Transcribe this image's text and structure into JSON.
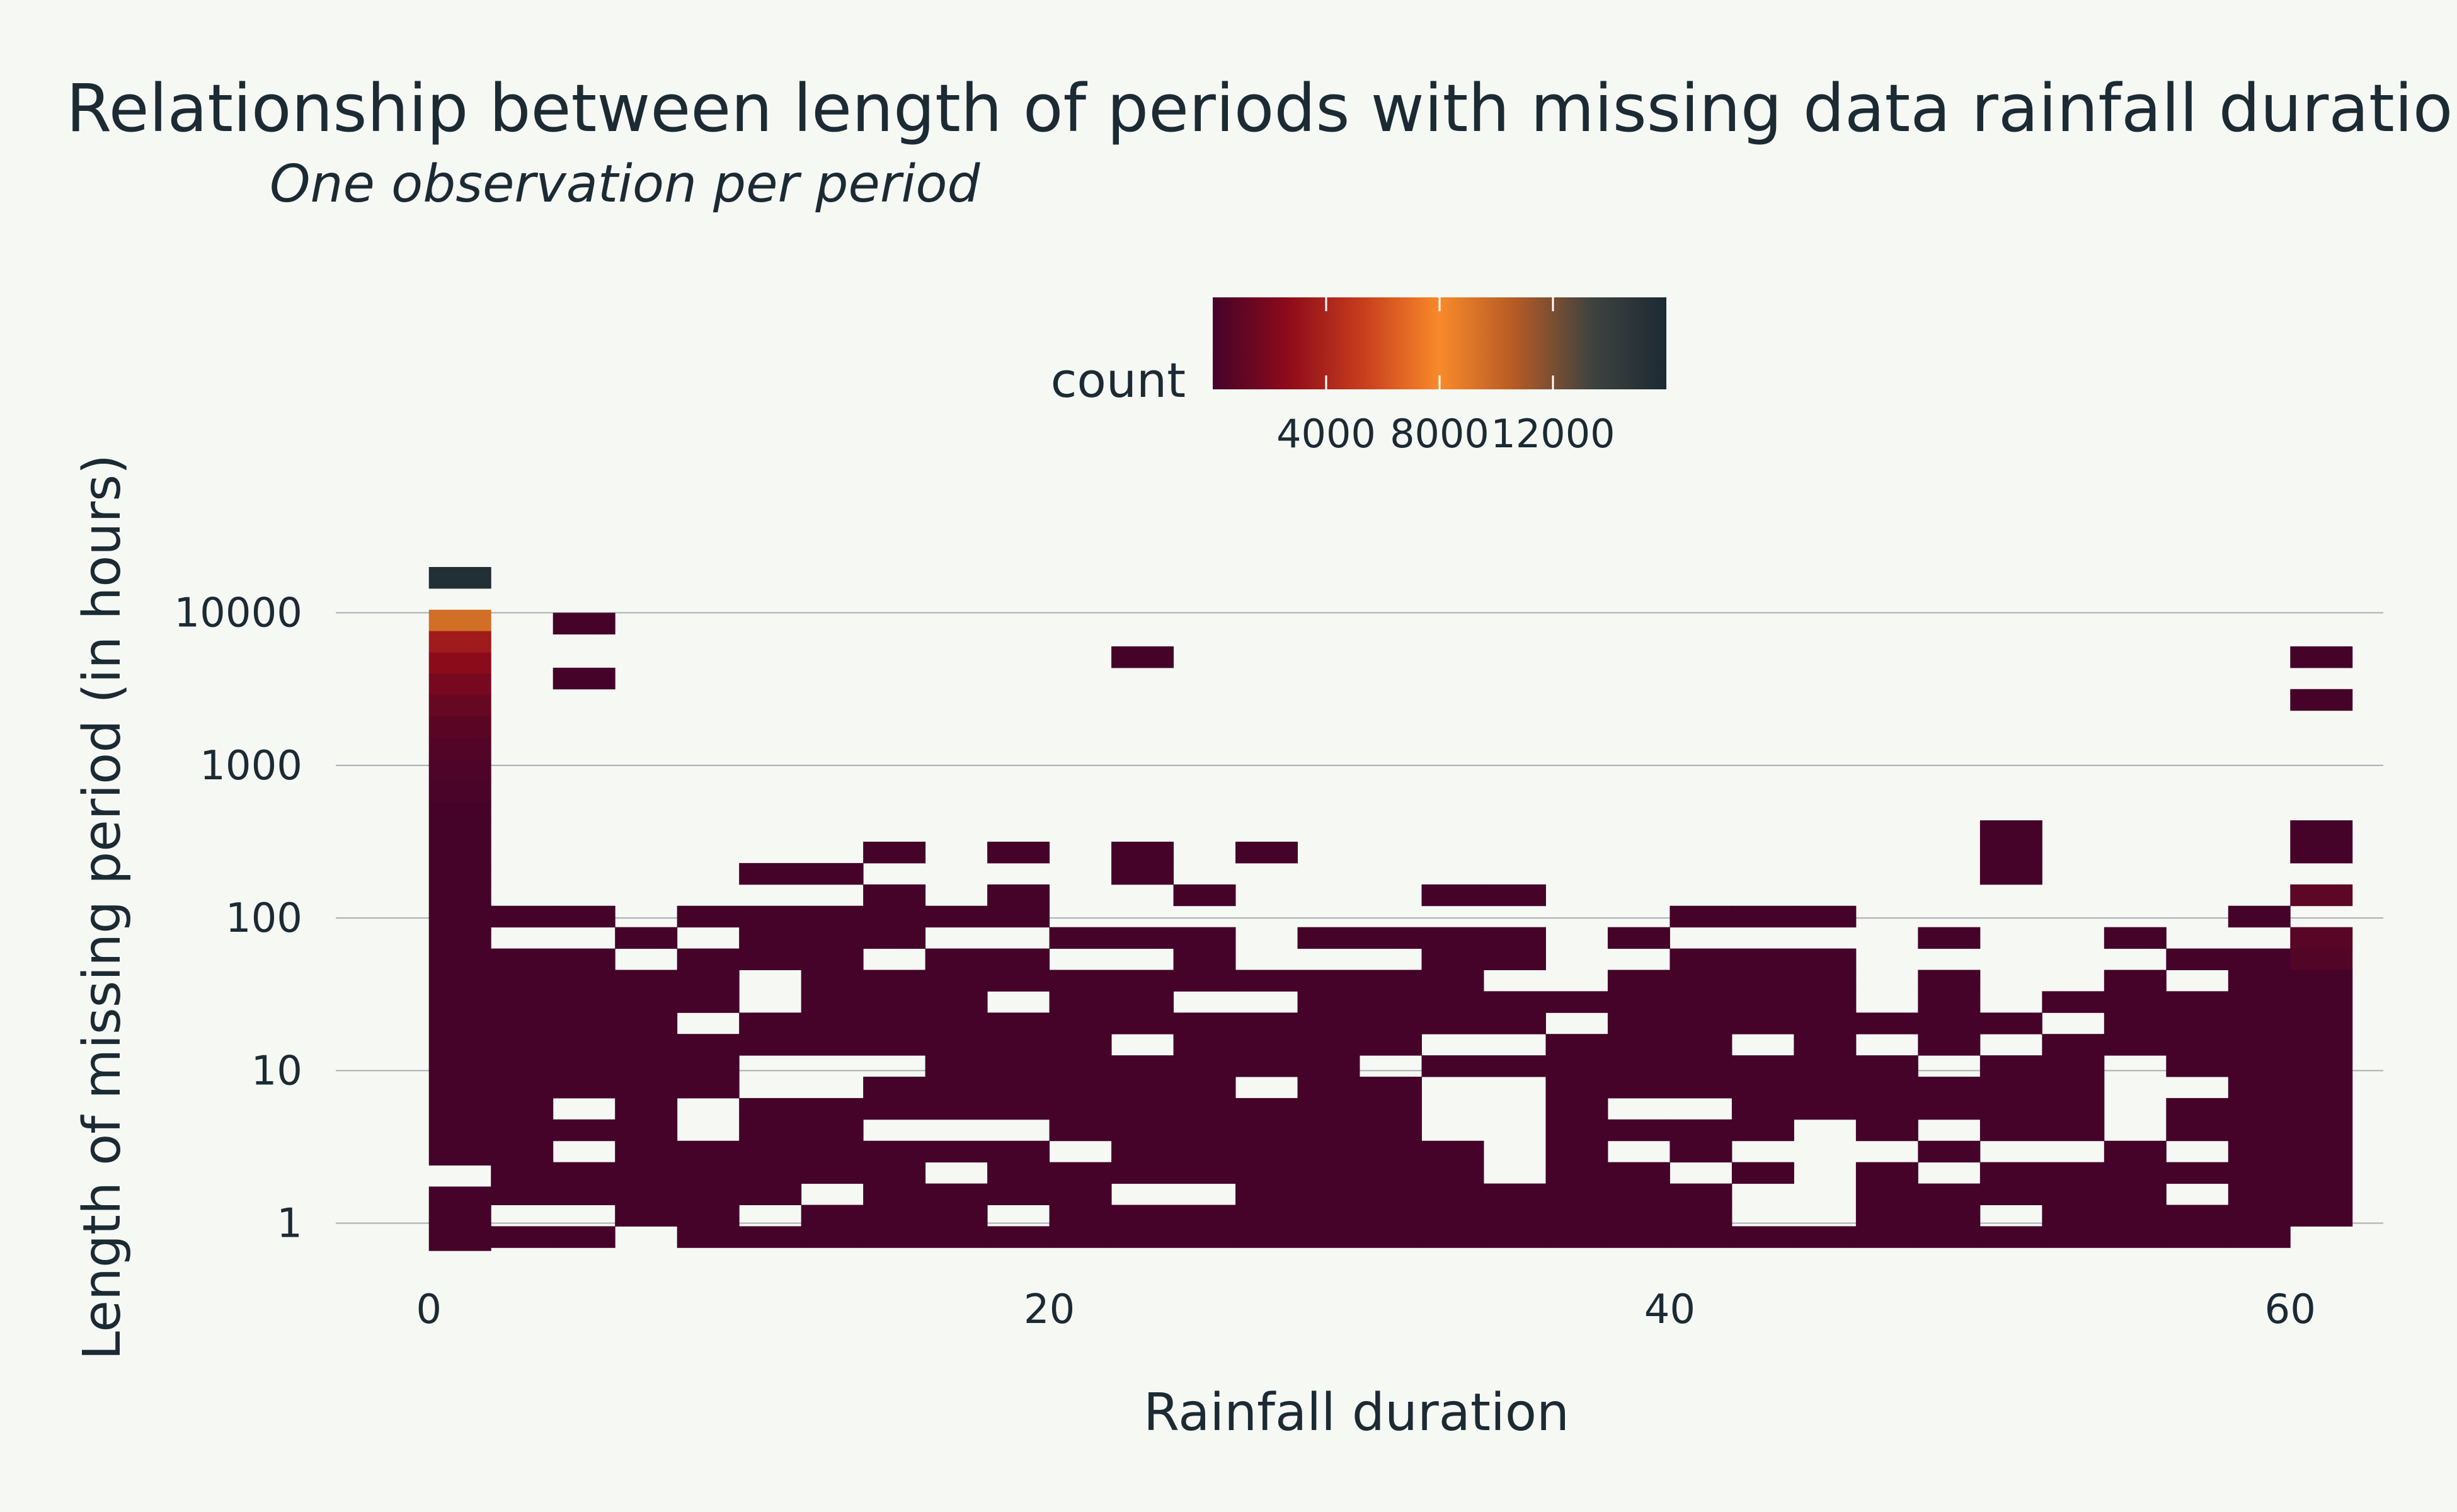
{
  "chart_data": {
    "type": "heatmap",
    "title": "Relationship between length of periods with missing data rainfall duration",
    "subtitle": "One observation per period",
    "xlabel": "Rainfall duration",
    "ylabel": "Length of missing period (in hours)",
    "x_ticks": [
      "0",
      "20",
      "40",
      "60"
    ],
    "y_ticks": [
      "1",
      "10",
      "100",
      "1000",
      "10000"
    ],
    "x_range": [
      -3,
      63
    ],
    "y_scale": "log",
    "y_range_log10": [
      -0.2,
      4.3
    ],
    "bin_width_x": 2,
    "bin_height_log10": 0.14,
    "grid": true,
    "colorscale": [
      "#45032a",
      "#8e0b1a",
      "#c83e1d",
      "#f98a2a",
      "#b45a25",
      "#40433f",
      "#1b2a33"
    ],
    "legend": {
      "title": "count",
      "placement": "top-center",
      "range": [
        0,
        16000
      ],
      "ticks": [
        "4000",
        "8000",
        "12000"
      ]
    },
    "columns": [
      {
        "x": 0,
        "max": 4.3,
        "skip": [
          1,
          28
        ],
        "values": {
          "0": 15500,
          "2": 9500,
          "3": 3500,
          "4": 2600,
          "5": 1800,
          "6": 1200,
          "7": 800,
          "8": 500,
          "9": 300,
          "10": 200
        }
      },
      {
        "x": 2,
        "max": 2.08,
        "skip": [
          1,
          14,
          16
        ]
      },
      {
        "x": 4,
        "max": 2.08,
        "skip": [
          1,
          9,
          11,
          14,
          16,
          21,
          22,
          24,
          25,
          26
        ],
        "extra": [
          4.0,
          3.64
        ]
      },
      {
        "x": 6,
        "max": 1.94,
        "skip": [
          1,
          14
        ]
      },
      {
        "x": 8,
        "max": 2.08,
        "skip": [
          1,
          5,
          9,
          10
        ]
      },
      {
        "x": 10,
        "max": 2.36,
        "skip": [
          1,
          5,
          6,
          9,
          10,
          16
        ]
      },
      {
        "x": 12,
        "max": 2.36,
        "skip": [
          1,
          9,
          10,
          15
        ]
      },
      {
        "x": 14,
        "max": 2.5,
        "skip": [
          1,
          5,
          10,
          13
        ]
      },
      {
        "x": 16,
        "max": 2.08,
        "skip": [
          1,
          10,
          12
        ]
      },
      {
        "x": 18,
        "max": 2.08,
        "skip": [
          1,
          4,
          10,
          14
        ],
        "extra": [
          2.5,
          2.22
        ]
      },
      {
        "x": 20,
        "max": 1.94,
        "skip": [
          1,
          10
        ]
      },
      {
        "x": 22,
        "max": 1.94,
        "skip": [
          1,
          5,
          12
        ],
        "extra": [
          3.78,
          2.5,
          2.36
        ]
      },
      {
        "x": 24,
        "max": 2.22,
        "skip": [
          1,
          5,
          14
        ]
      },
      {
        "x": 26,
        "max": 1.66,
        "skip": [
          1,
          5
        ],
        "extra": [
          2.5
        ]
      },
      {
        "x": 28,
        "max": 1.94,
        "skip": [
          1
        ]
      },
      {
        "x": 30,
        "max": 1.94,
        "skip": [
          1,
          6
        ]
      },
      {
        "x": 32,
        "max": 2.22,
        "skip": [
          1,
          7,
          9,
          10,
          11
        ]
      },
      {
        "x": 34,
        "max": 2.22,
        "skip": [
          1,
          4,
          7,
          9,
          10,
          11,
          12,
          13
        ]
      },
      {
        "x": 36,
        "max": 1.52,
        "skip": [
          1
        ]
      },
      {
        "x": 38,
        "max": 1.94,
        "skip": [
          1,
          8,
          10
        ]
      },
      {
        "x": 40,
        "max": 2.08,
        "skip": [
          1,
          9,
          12
        ]
      },
      {
        "x": 42,
        "max": 2.08,
        "skip": [
          1,
          6,
          11,
          13,
          14
        ]
      },
      {
        "x": 44,
        "max": 2.08,
        "skip": [
          1,
          10,
          11,
          12,
          13,
          14
        ]
      },
      {
        "x": 46,
        "max": 1.38,
        "skip": [
          1,
          6
        ]
      },
      {
        "x": 48,
        "max": 1.94,
        "skip": [
          1,
          6,
          9,
          11
        ]
      },
      {
        "x": 50,
        "max": 1.38,
        "skip": [
          1,
          6,
          9,
          11
        ],
        "extra": [
          2.64,
          2.5,
          2.36
        ]
      },
      {
        "x": 52,
        "max": 1.52,
        "skip": [
          1,
          7
        ]
      },
      {
        "x": 54,
        "max": 1.94,
        "skip": [
          1,
          6,
          7,
          8,
          9
        ]
      },
      {
        "x": 56,
        "max": 1.8,
        "skip": [
          1,
          6,
          9,
          11
        ]
      },
      {
        "x": 58,
        "max": 2.08,
        "skip": [
          1,
          16
        ]
      },
      {
        "x": 60,
        "max": 2.22,
        "skip": [
          1,
          16
        ],
        "extra": [
          3.78,
          3.5,
          2.64,
          2.5
        ],
        "values": {
          "0": 900,
          "2": 700,
          "3": 500
        }
      }
    ]
  }
}
